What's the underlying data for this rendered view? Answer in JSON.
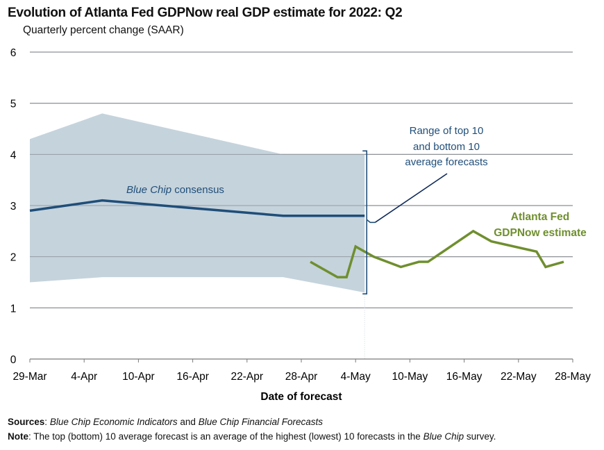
{
  "chart_data": {
    "type": "line",
    "title": "Evolution of Atlanta Fed GDPNow real GDP estimate for 2022: Q2",
    "subtitle": "Quarterly percent change (SAAR)",
    "xlabel": "Date of forecast",
    "ylabel": "",
    "ylim": [
      0,
      6
    ],
    "yticks": [
      "0",
      "1",
      "2",
      "3",
      "4",
      "5",
      "6"
    ],
    "x_range_days": [
      0,
      60
    ],
    "x_origin": "29-Mar",
    "xticks": [
      {
        "day": 0,
        "label": "29-Mar"
      },
      {
        "day": 6,
        "label": "4-Apr"
      },
      {
        "day": 12,
        "label": "10-Apr"
      },
      {
        "day": 18,
        "label": "16-Apr"
      },
      {
        "day": 24,
        "label": "22-Apr"
      },
      {
        "day": 30,
        "label": "28-Apr"
      },
      {
        "day": 36,
        "label": "4-May"
      },
      {
        "day": 42,
        "label": "10-May"
      },
      {
        "day": 48,
        "label": "16-May"
      },
      {
        "day": 54,
        "label": "22-May"
      },
      {
        "day": 60,
        "label": "28-May"
      }
    ],
    "grid": true,
    "series": [
      {
        "name": "Blue Chip range (top 10 / bottom 10 average)",
        "kind": "band",
        "color": "#c5d3dc",
        "x_days": [
          0,
          8,
          28,
          37
        ],
        "upper": [
          4.3,
          4.8,
          4.0,
          4.0
        ],
        "lower": [
          1.5,
          1.6,
          1.6,
          1.3
        ]
      },
      {
        "name": "Blue Chip consensus",
        "kind": "line",
        "color": "#1f4e79",
        "x_days": [
          0,
          8,
          28,
          37
        ],
        "values": [
          2.9,
          3.1,
          2.8,
          2.8
        ]
      },
      {
        "name": "Atlanta Fed GDPNow estimate",
        "kind": "line",
        "color": "#6f8f2e",
        "x_days": [
          31,
          34,
          35,
          36,
          38,
          41,
          43,
          44,
          49,
          51,
          56,
          57,
          59
        ],
        "values": [
          1.9,
          1.6,
          1.6,
          2.2,
          2.0,
          1.8,
          1.9,
          1.9,
          2.5,
          2.3,
          2.1,
          1.8,
          1.9
        ]
      }
    ],
    "annotations": {
      "consensus_label_italic": "Blue Chip",
      "consensus_label_rest": " consensus",
      "range_label": [
        "Range of top 10",
        "and bottom 10",
        "average forecasts"
      ],
      "gdpnow_label": [
        "Atlanta Fed",
        "GDPNow estimate"
      ],
      "vertical_marker_day": 37
    }
  },
  "footnotes": {
    "sources_label": "Sources",
    "sources_text_1": "Blue Chip Economic Indicators",
    "sources_text_2": " and ",
    "sources_text_3": "Blue Chip Financial Forecasts",
    "note_label": "Note",
    "note_text_1": ": The top (bottom) 10 average forecast is an average of the highest (lowest) 10 forecasts in the ",
    "note_text_2": "Blue Chip",
    "note_text_3": " survey."
  }
}
